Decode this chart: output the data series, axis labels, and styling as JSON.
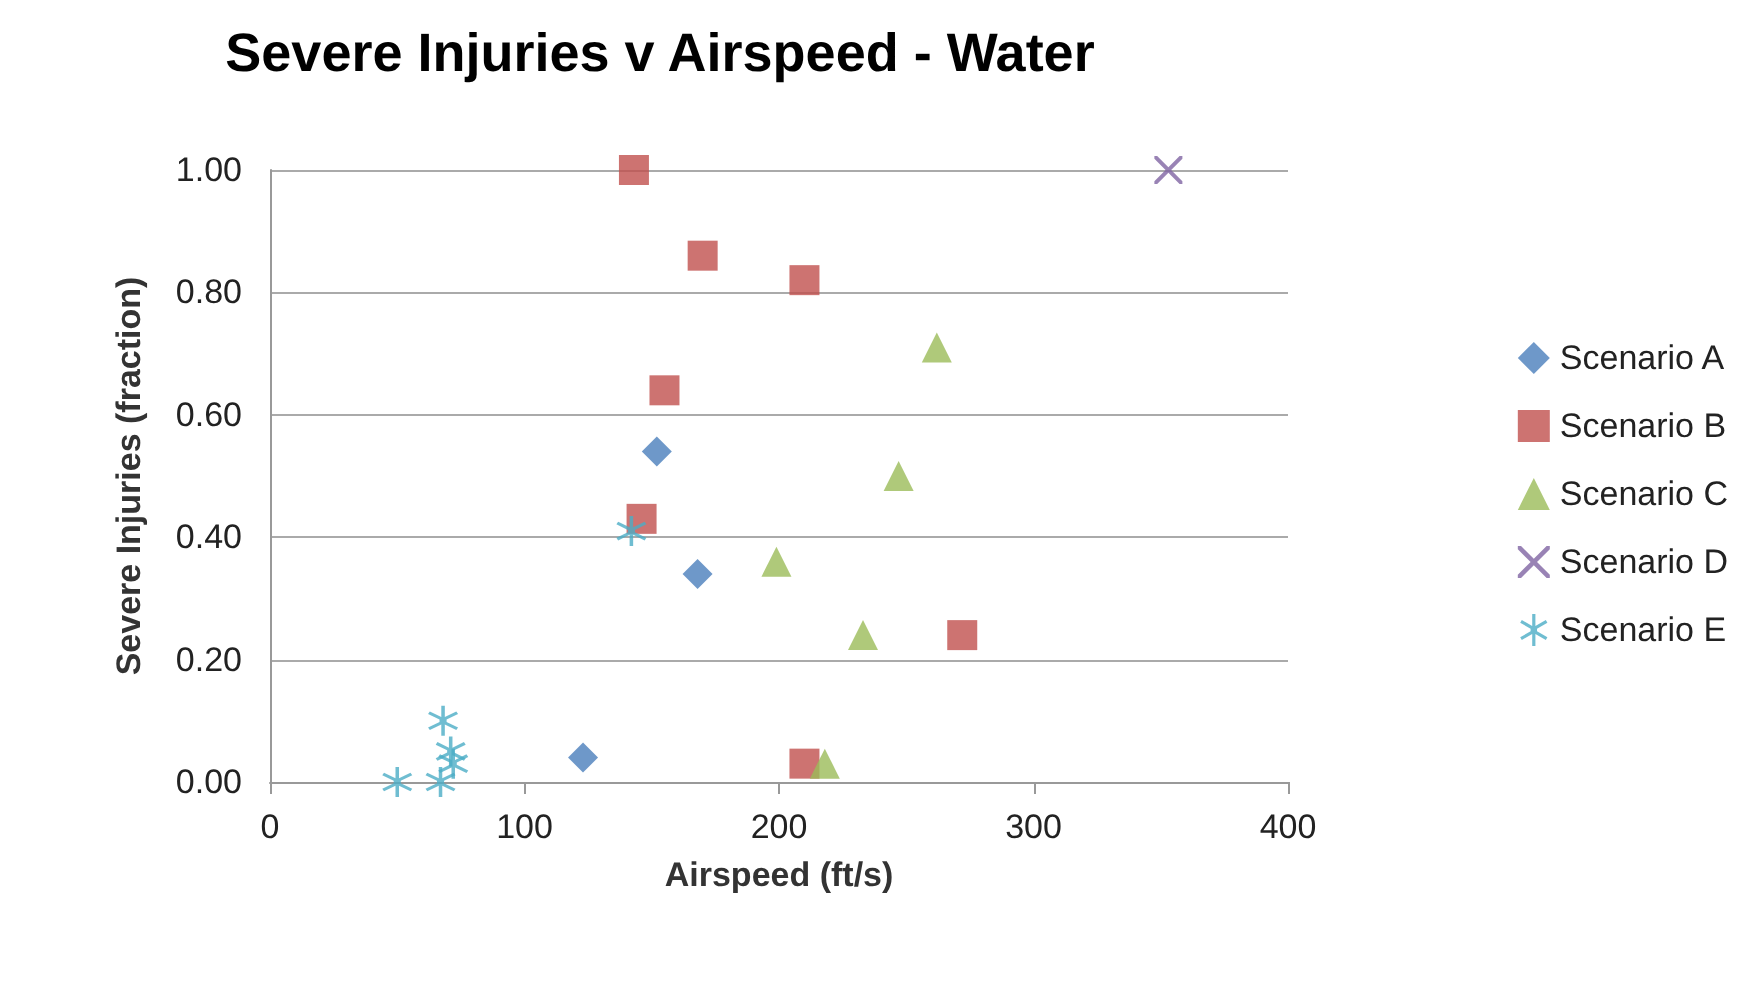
{
  "chart_data": {
    "type": "scatter",
    "title": "Severe Injuries v Airspeed - Water",
    "xlabel": "Airspeed (ft/s)",
    "ylabel": "Severe Injuries (fraction)",
    "xlim": [
      0,
      400
    ],
    "xticks": [
      0,
      100,
      200,
      300,
      400
    ],
    "ylim": [
      0,
      1
    ],
    "yticks": [
      {
        "value": 0,
        "label": "0.00"
      },
      {
        "value": 0.2,
        "label": "0.20"
      },
      {
        "value": 0.4,
        "label": "0.40"
      },
      {
        "value": 0.6,
        "label": "0.60"
      },
      {
        "value": 0.8,
        "label": "0.80"
      },
      {
        "value": 1,
        "label": "1.00"
      }
    ],
    "grid": "y",
    "legend": "right",
    "series": [
      {
        "name": "Scenario A",
        "color": "#4a7ebb",
        "marker": "diamond",
        "x": [
          152,
          168,
          123
        ],
        "values": [
          0.54,
          0.34,
          0.04
        ]
      },
      {
        "name": "Scenario B",
        "color": "#c0504d",
        "marker": "square",
        "x": [
          143,
          170,
          210,
          155,
          146,
          272,
          210
        ],
        "values": [
          1.0,
          0.86,
          0.82,
          0.64,
          0.43,
          0.24,
          0.03
        ]
      },
      {
        "name": "Scenario C",
        "color": "#9bbb59",
        "marker": "triangle",
        "x": [
          262,
          247,
          199,
          233,
          218
        ],
        "values": [
          0.71,
          0.5,
          0.36,
          0.24,
          0.03
        ]
      },
      {
        "name": "Scenario D",
        "color": "#8064a2",
        "marker": "cross",
        "x": [
          353
        ],
        "values": [
          1.0
        ]
      },
      {
        "name": "Scenario E",
        "color": "#4bacc6",
        "marker": "star",
        "x": [
          142,
          68,
          71,
          72,
          50,
          67
        ],
        "values": [
          0.41,
          0.1,
          0.05,
          0.03,
          0.0,
          0.0
        ]
      }
    ]
  }
}
